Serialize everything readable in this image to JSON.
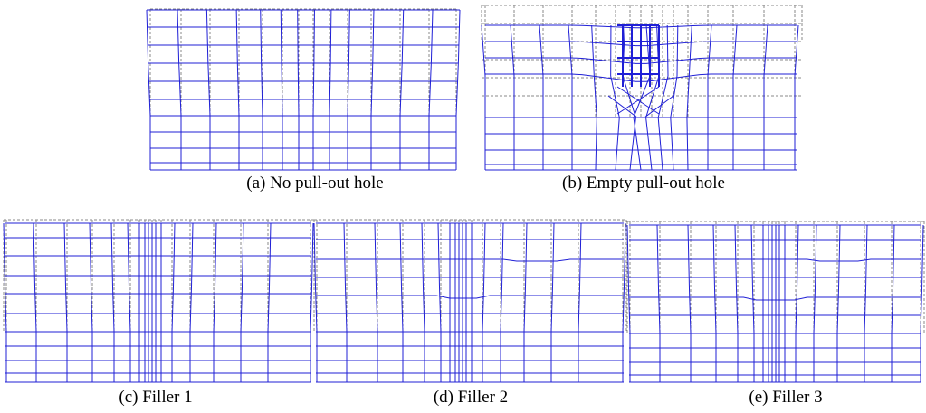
{
  "colors": {
    "deformed_mesh": "#1f1fd6",
    "original_mesh": "#8a8a8a",
    "background": "#ffffff"
  },
  "panels": [
    {
      "id": "a",
      "caption": "(a) No pull-out hole"
    },
    {
      "id": "b",
      "caption": "(b) Empty pull-out hole"
    },
    {
      "id": "c",
      "caption": "(c) Filler 1"
    },
    {
      "id": "d",
      "caption": "(d) Filler 2"
    },
    {
      "id": "e",
      "caption": "(e) Filler 3"
    }
  ]
}
